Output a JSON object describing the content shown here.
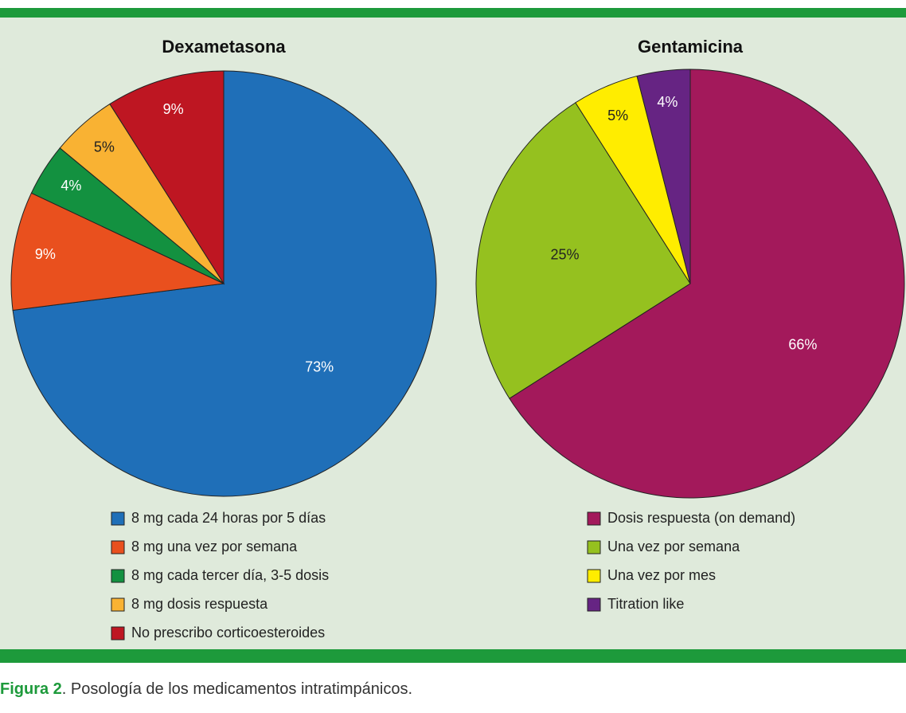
{
  "chart_data": [
    {
      "type": "pie",
      "title": "Dexametasona",
      "categories": [
        "8 mg cada 24 horas por 5 días",
        "8 mg una vez por semana",
        "8 mg cada tercer día, 3-5 dosis",
        "8 mg dosis respuesta",
        "No prescribo corticoesteroides"
      ],
      "values": [
        73,
        9,
        4,
        5,
        9
      ],
      "value_labels": [
        "73%",
        "9%",
        "4%",
        "5%",
        "9%"
      ],
      "colors": [
        "#1f6fb8",
        "#e9501e",
        "#139140",
        "#f9b233",
        "#be1622"
      ]
    },
    {
      "type": "pie",
      "title": "Gentamicina",
      "categories": [
        "Dosis respuesta (on demand)",
        "Una vez por semana",
        "Una vez por mes",
        "Titration like"
      ],
      "values": [
        66,
        25,
        5,
        4
      ],
      "value_labels": [
        "66%",
        "25%",
        "5%",
        "4%"
      ],
      "colors": [
        "#a3195b",
        "#95c11f",
        "#ffed00",
        "#662483"
      ]
    }
  ],
  "caption": {
    "label": "Figura 2",
    "text": ". Posología de los medicamentos intratimpánicos."
  }
}
